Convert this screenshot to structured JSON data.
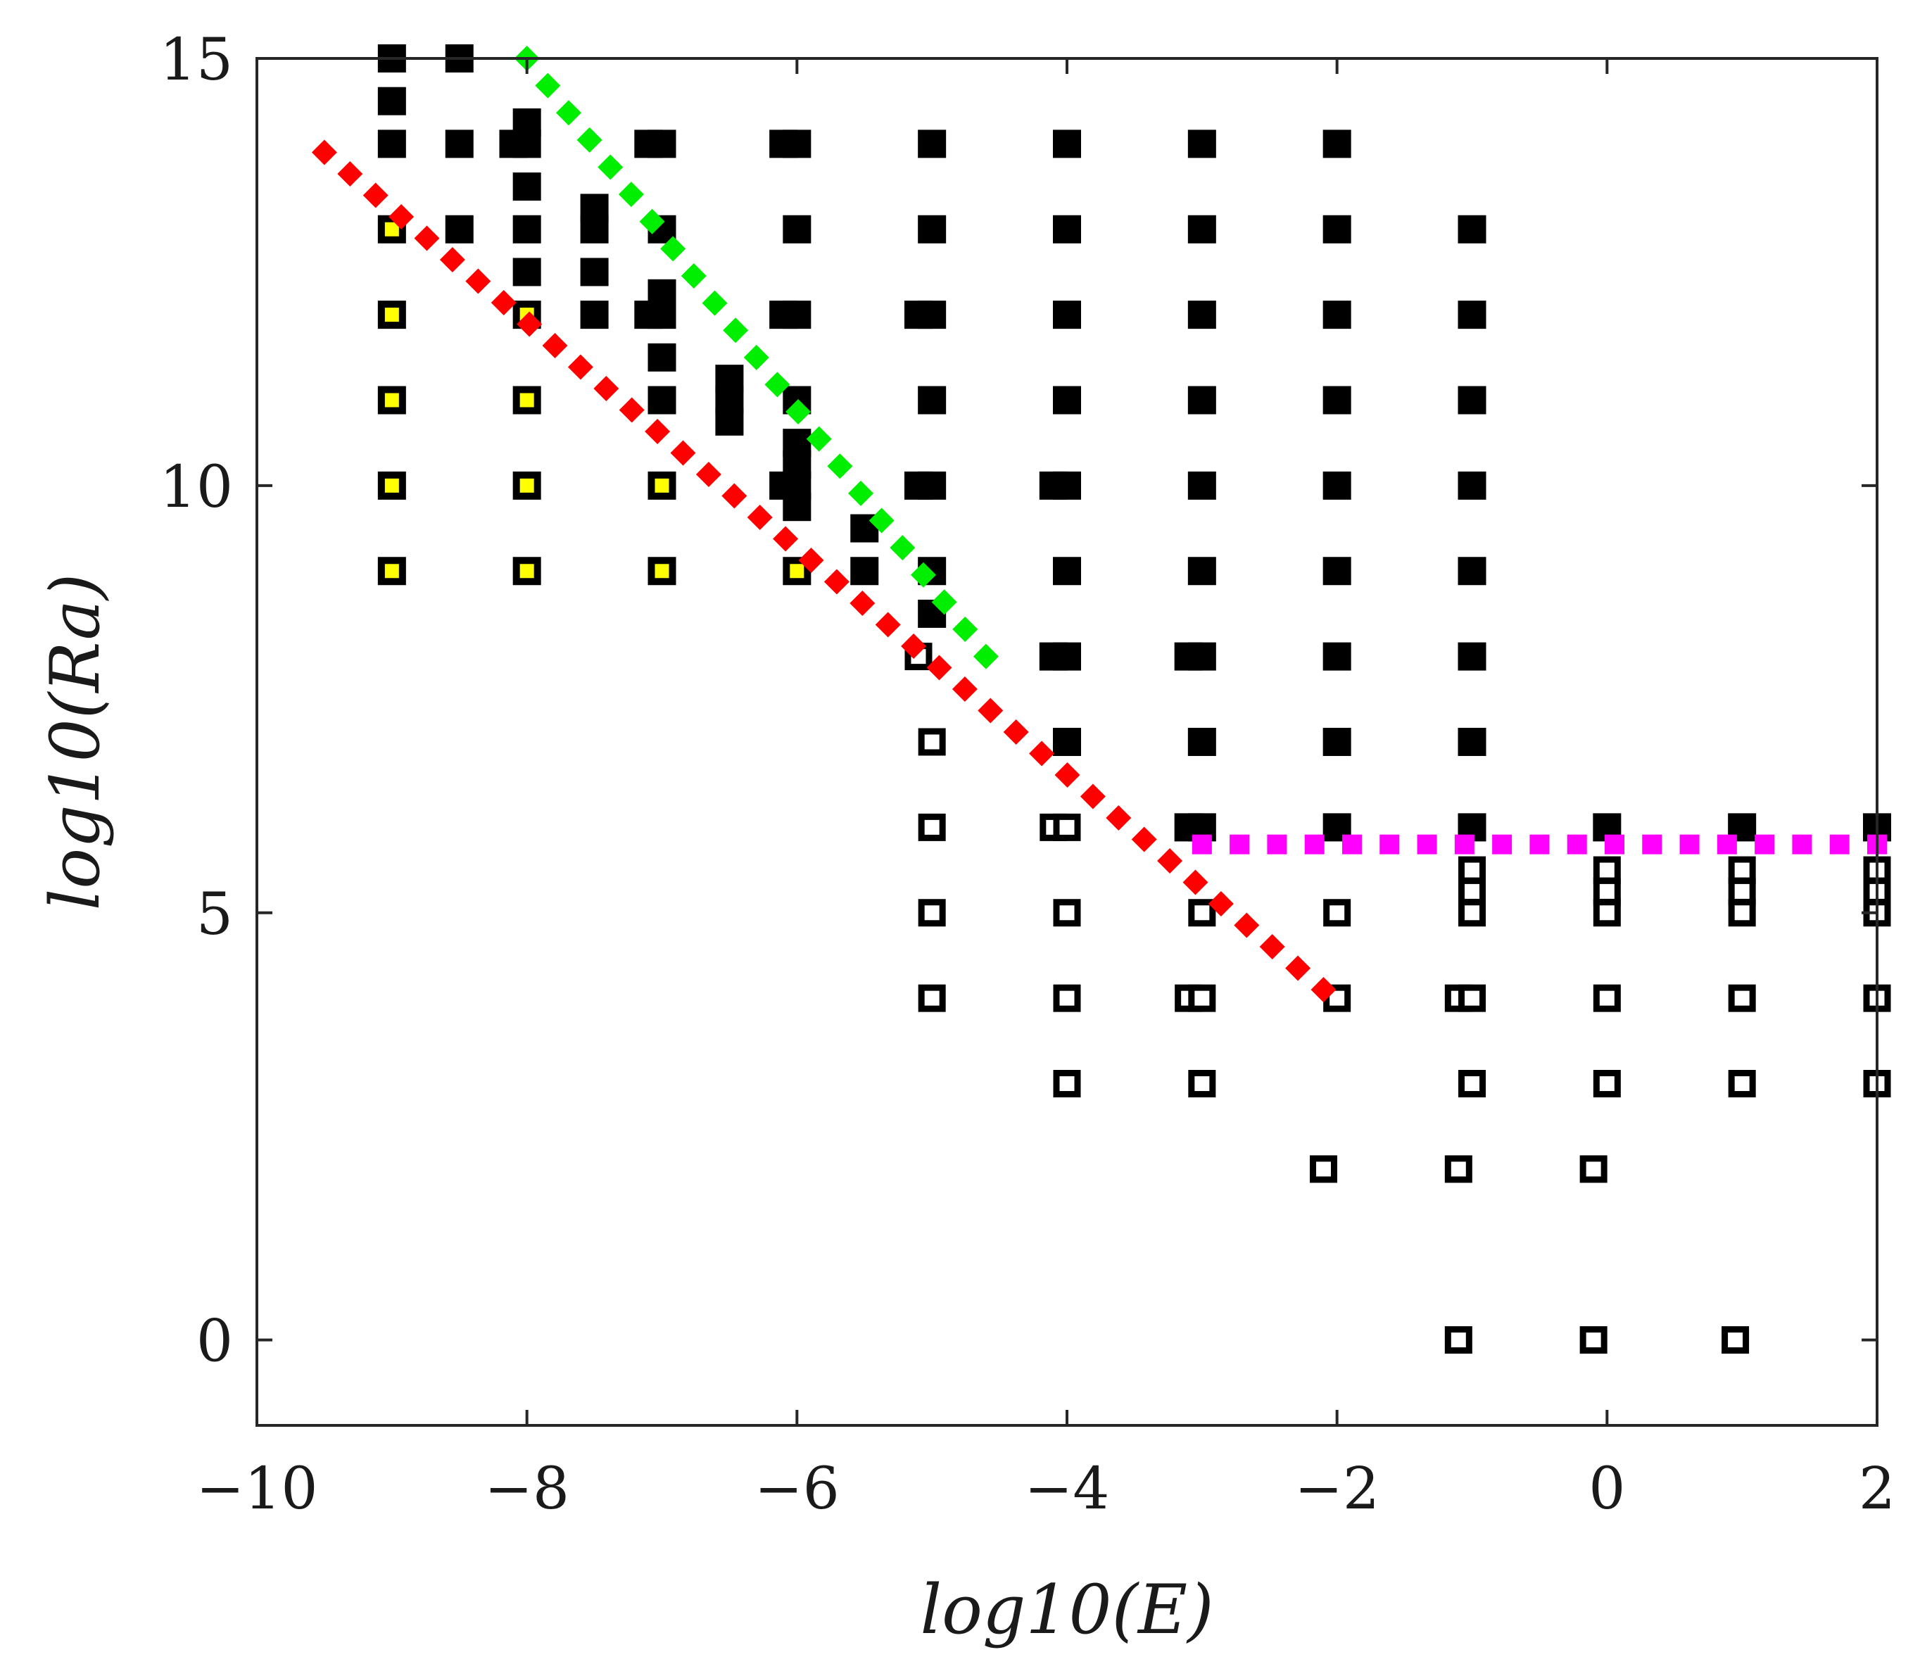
{
  "chart_data": {
    "type": "scatter",
    "xlabel": "log10(E)",
    "ylabel": "log10(Ra)",
    "xlim": [
      -10,
      2
    ],
    "ylim": [
      -1,
      15
    ],
    "xticks": [
      -10,
      -8,
      -6,
      -4,
      -2,
      0,
      2
    ],
    "xtick_labels": [
      "−10",
      "−8",
      "−6",
      "−4",
      "−2",
      "0",
      "2"
    ],
    "yticks": [
      0,
      5,
      10,
      15
    ],
    "ytick_labels": [
      "0",
      "5",
      "10",
      "15"
    ],
    "grid": false,
    "series": [
      {
        "name": "filled",
        "style": "filled-square",
        "points": [
          [
            -9,
            15
          ],
          [
            -9,
            14.5
          ],
          [
            -9,
            14
          ],
          [
            -8.5,
            15
          ],
          [
            -8.5,
            14
          ],
          [
            -8.5,
            13
          ],
          [
            -8,
            14.25
          ],
          [
            -8,
            14
          ],
          [
            -8,
            13.5
          ],
          [
            -8,
            13
          ],
          [
            -8,
            12.5
          ],
          [
            -8.1,
            14
          ],
          [
            -7.5,
            13.25
          ],
          [
            -7.5,
            13
          ],
          [
            -7.5,
            12.5
          ],
          [
            -7.5,
            12
          ],
          [
            -7,
            14
          ],
          [
            -7.1,
            14
          ],
          [
            -7,
            13
          ],
          [
            -7,
            12.25
          ],
          [
            -7,
            12
          ],
          [
            -7.1,
            12
          ],
          [
            -7,
            11.5
          ],
          [
            -7,
            11
          ],
          [
            -6.5,
            11.25
          ],
          [
            -6.5,
            11
          ],
          [
            -6.5,
            10.75
          ],
          [
            -6,
            14
          ],
          [
            -6.1,
            14
          ],
          [
            -6,
            13
          ],
          [
            -6,
            12
          ],
          [
            -6.1,
            12
          ],
          [
            -6,
            11
          ],
          [
            -6,
            10.5
          ],
          [
            -6,
            10.25
          ],
          [
            -6,
            10
          ],
          [
            -6.1,
            10
          ],
          [
            -6,
            9.75
          ],
          [
            -5.5,
            9.5
          ],
          [
            -5.5,
            9
          ],
          [
            -5,
            14
          ],
          [
            -5,
            13
          ],
          [
            -5,
            12
          ],
          [
            -5.1,
            12
          ],
          [
            -5,
            11
          ],
          [
            -5,
            10
          ],
          [
            -5.1,
            10
          ],
          [
            -5,
            9
          ],
          [
            -5,
            8.5
          ],
          [
            -4,
            14
          ],
          [
            -4,
            13
          ],
          [
            -4,
            12
          ],
          [
            -4,
            11
          ],
          [
            -4,
            10
          ],
          [
            -4.1,
            10
          ],
          [
            -4,
            9
          ],
          [
            -4,
            8
          ],
          [
            -4.1,
            8
          ],
          [
            -4,
            7
          ],
          [
            -3,
            14
          ],
          [
            -3,
            13
          ],
          [
            -3,
            12
          ],
          [
            -3,
            11
          ],
          [
            -3,
            10
          ],
          [
            -3,
            9
          ],
          [
            -3,
            8
          ],
          [
            -3.1,
            8
          ],
          [
            -3,
            7
          ],
          [
            -3,
            6
          ],
          [
            -3.1,
            6
          ],
          [
            -2,
            14
          ],
          [
            -2,
            13
          ],
          [
            -2,
            12
          ],
          [
            -2,
            11
          ],
          [
            -2,
            10
          ],
          [
            -2,
            9
          ],
          [
            -2,
            8
          ],
          [
            -2,
            7
          ],
          [
            -2,
            6
          ],
          [
            -1,
            13
          ],
          [
            -1,
            12
          ],
          [
            -1,
            11
          ],
          [
            -1,
            10
          ],
          [
            -1,
            9
          ],
          [
            -1,
            8
          ],
          [
            -1,
            7
          ],
          [
            -1,
            6
          ],
          [
            0,
            6
          ],
          [
            1,
            6
          ],
          [
            2,
            6
          ]
        ]
      },
      {
        "name": "yellow",
        "style": "yellow-square",
        "points": [
          [
            -9,
            13
          ],
          [
            -9,
            12
          ],
          [
            -9,
            11
          ],
          [
            -9,
            10
          ],
          [
            -9,
            9
          ],
          [
            -8,
            12
          ],
          [
            -8,
            11
          ],
          [
            -8,
            10
          ],
          [
            -8,
            9
          ],
          [
            -7,
            10
          ],
          [
            -7,
            9
          ],
          [
            -6,
            9
          ]
        ]
      },
      {
        "name": "open",
        "style": "open-square",
        "points": [
          [
            -5.1,
            8
          ],
          [
            -5,
            7
          ],
          [
            -5,
            6
          ],
          [
            -5,
            5
          ],
          [
            -5,
            4
          ],
          [
            -4.1,
            6
          ],
          [
            -4,
            6
          ],
          [
            -4,
            5
          ],
          [
            -4,
            4
          ],
          [
            -4,
            3
          ],
          [
            -3,
            5
          ],
          [
            -3.1,
            4
          ],
          [
            -3,
            4
          ],
          [
            -3,
            3
          ],
          [
            -2,
            5
          ],
          [
            -2,
            4
          ],
          [
            -2.1,
            2
          ],
          [
            -1,
            5.5
          ],
          [
            -1,
            5.25
          ],
          [
            -1,
            5
          ],
          [
            -1.1,
            4
          ],
          [
            -1,
            4
          ],
          [
            -1,
            3
          ],
          [
            -1.1,
            2
          ],
          [
            -1.1,
            0
          ],
          [
            0,
            5.5
          ],
          [
            0,
            5.25
          ],
          [
            0,
            5
          ],
          [
            0,
            4
          ],
          [
            0,
            3
          ],
          [
            -0.1,
            2
          ],
          [
            -0.1,
            0
          ],
          [
            1,
            5.5
          ],
          [
            1,
            5.25
          ],
          [
            1,
            5
          ],
          [
            1,
            4
          ],
          [
            1,
            3
          ],
          [
            0.95,
            0
          ],
          [
            2,
            5.5
          ],
          [
            2,
            5.25
          ],
          [
            2,
            5
          ],
          [
            2,
            4
          ],
          [
            2,
            3
          ]
        ]
      }
    ],
    "lines": [
      {
        "name": "red-boundary",
        "color": "#ff0000",
        "style": "dotted",
        "points": [
          [
            -9.5,
            13.9
          ],
          [
            -2.1,
            4.1
          ]
        ]
      },
      {
        "name": "green-boundary",
        "color": "#00ee00",
        "style": "dotted",
        "points": [
          [
            -8,
            15
          ],
          [
            -4.6,
            8
          ]
        ]
      },
      {
        "name": "magenta-boundary",
        "color": "#ff00ff",
        "style": "dotted",
        "points": [
          [
            -3,
            5.8
          ],
          [
            2,
            5.8
          ]
        ]
      }
    ]
  },
  "colors": {
    "axis": "#262626",
    "filled": "#000000",
    "yellow": "#ffff00",
    "red": "#ff0000",
    "green": "#00ee00",
    "magenta": "#ff00ff"
  }
}
